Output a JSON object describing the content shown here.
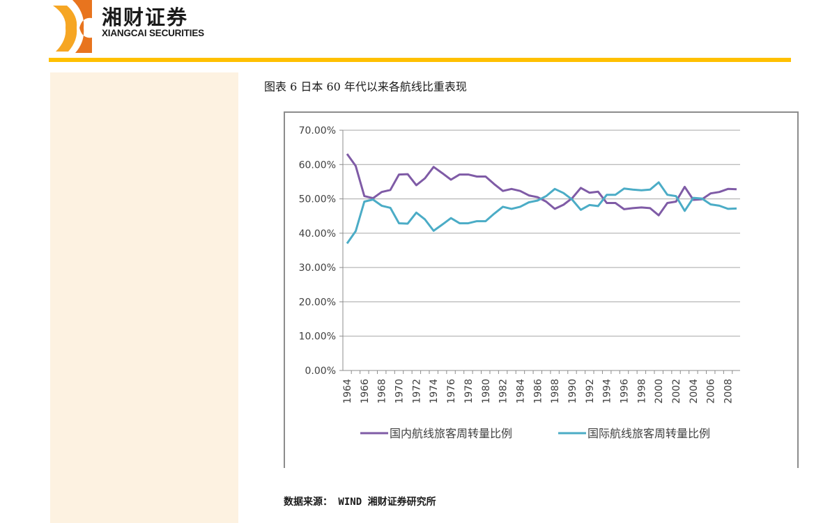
{
  "header": {
    "brand_cn": "湘财证券",
    "brand_en": "XIANGCAI SECURITIES",
    "accent_color": "#FFC000",
    "logo_colors": [
      "#F6A623",
      "#E8741E"
    ]
  },
  "figure": {
    "title": "图表  6  日本 60 年代以来各航线比重表现"
  },
  "source": {
    "text": "数据来源：  WIND 湘财证券研究所"
  },
  "chart_data": {
    "type": "line",
    "title": "图表 6 日本 60 年代以来各航线比重表现",
    "xlabel": "",
    "ylabel": "",
    "ylim": [
      0,
      70
    ],
    "y_ticks": [
      "0.00%",
      "10.00%",
      "20.00%",
      "30.00%",
      "40.00%",
      "50.00%",
      "60.00%",
      "70.00%"
    ],
    "x_tick_labels": [
      "1964",
      "1966",
      "1968",
      "1970",
      "1972",
      "1974",
      "1976",
      "1978",
      "1980",
      "1982",
      "1984",
      "1986",
      "1988",
      "1990",
      "1992",
      "1994",
      "1996",
      "1998",
      "2000",
      "2002",
      "2004",
      "2006",
      "2008"
    ],
    "grid": "horizontal",
    "legend_position": "bottom",
    "x": [
      1964,
      1965,
      1966,
      1967,
      1968,
      1969,
      1970,
      1971,
      1972,
      1973,
      1974,
      1975,
      1976,
      1977,
      1978,
      1979,
      1980,
      1981,
      1982,
      1983,
      1984,
      1985,
      1986,
      1987,
      1988,
      1989,
      1990,
      1991,
      1992,
      1993,
      1994,
      1995,
      1996,
      1997,
      1998,
      1999,
      2000,
      2001,
      2002,
      2003,
      2004,
      2005,
      2006,
      2007,
      2008,
      2009
    ],
    "series": [
      {
        "name": "国内航线旅客周转量比例",
        "color": "#7F5BA6",
        "values": [
          63.1,
          59.6,
          50.8,
          50.2,
          52.0,
          52.6,
          57.1,
          57.2,
          54.0,
          56.0,
          59.3,
          57.5,
          55.6,
          57.1,
          57.1,
          56.5,
          56.5,
          54.3,
          52.3,
          52.9,
          52.3,
          51.0,
          50.5,
          49.2,
          47.1,
          48.3,
          50.2,
          53.2,
          51.8,
          52.1,
          48.8,
          48.8,
          47.0,
          47.3,
          47.5,
          47.3,
          45.2,
          48.8,
          49.2,
          53.5,
          49.7,
          49.9,
          51.6,
          52.0,
          52.9,
          52.8
        ],
        "unit": "%"
      },
      {
        "name": "国际航线旅客周转量比例",
        "color": "#4BACC6",
        "values": [
          37.0,
          40.6,
          49.2,
          49.8,
          48.0,
          47.4,
          42.9,
          42.8,
          46.0,
          44.0,
          40.7,
          42.5,
          44.4,
          42.9,
          42.9,
          43.5,
          43.5,
          45.7,
          47.7,
          47.1,
          47.7,
          49.0,
          49.5,
          50.8,
          52.9,
          51.7,
          49.8,
          46.8,
          48.2,
          47.9,
          51.2,
          51.2,
          53.0,
          52.7,
          52.5,
          52.7,
          54.8,
          51.2,
          50.8,
          46.5,
          50.3,
          50.1,
          48.4,
          48.0,
          47.1,
          47.2
        ],
        "unit": "%"
      }
    ]
  }
}
